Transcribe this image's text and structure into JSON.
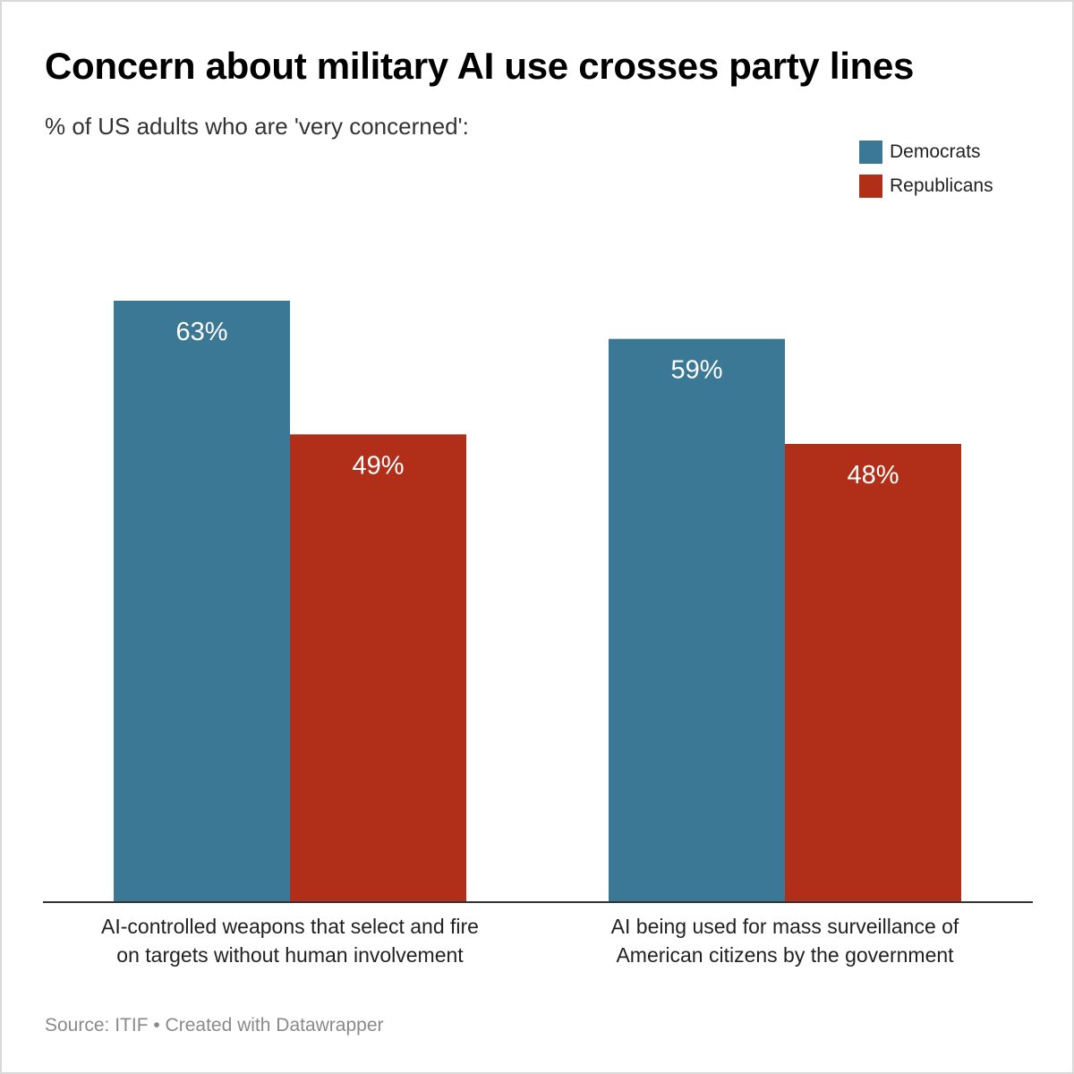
{
  "chart_data": {
    "type": "bar",
    "title": "Concern about military AI use crosses party lines",
    "subtitle": "% of US adults who are 'very concerned':",
    "categories": [
      [
        "AI-controlled weapons that select and fire",
        "on targets without human involvement"
      ],
      [
        "AI being used for mass surveillance of",
        "American citizens by the government"
      ]
    ],
    "series": [
      {
        "name": "Democrats",
        "color": "#3b7895",
        "values": [
          63,
          59
        ],
        "labels": [
          "63%",
          "59%"
        ]
      },
      {
        "name": "Republicans",
        "color": "#b12e18",
        "values": [
          49,
          48
        ],
        "labels": [
          "49%",
          "48%"
        ]
      }
    ],
    "ylim": [
      0,
      63
    ],
    "grid": false,
    "legend": "top-right",
    "xlabel": "",
    "ylabel": ""
  },
  "source": "Source: ITIF • Created with Datawrapper"
}
